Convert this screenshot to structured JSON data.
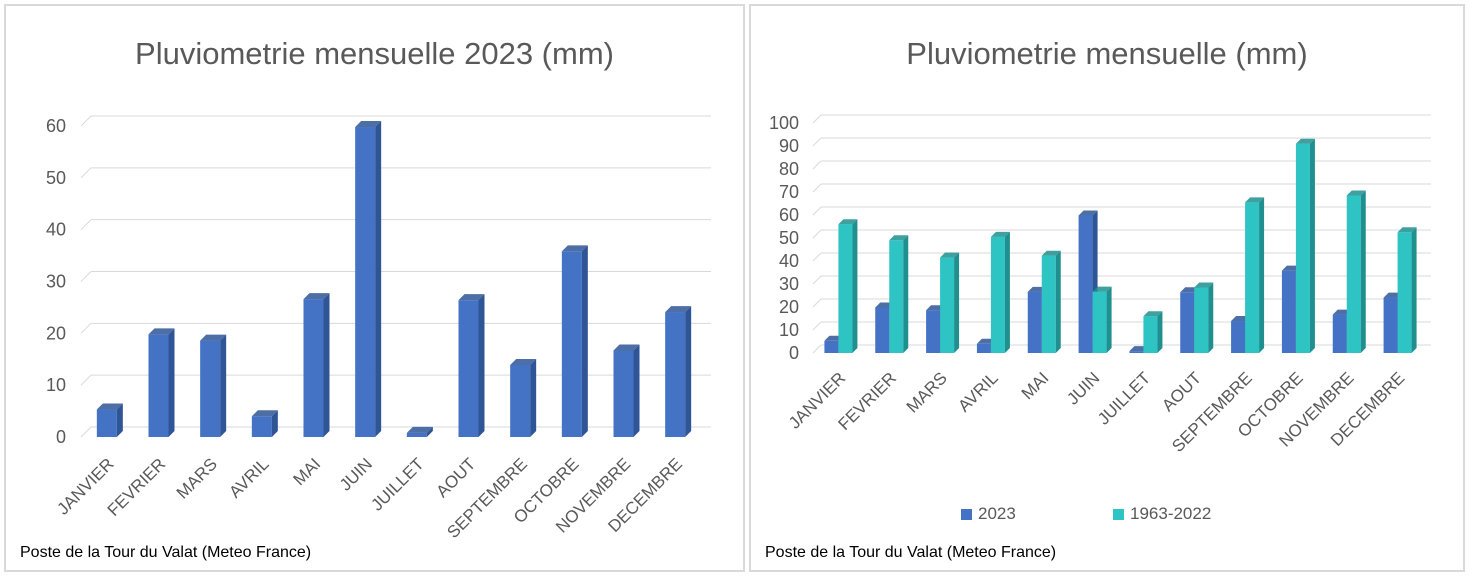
{
  "colors": {
    "series_2023": "#4472c4",
    "series_2023_side": "#2f5597",
    "series_hist": "#2ec4c4",
    "series_hist_side": "#1f8f8f",
    "grid": "#d9d9d9"
  },
  "chart_data": [
    {
      "type": "bar",
      "title": "Pluviometrie mensuelle 2023 (mm)",
      "source": "Poste de la Tour du Valat (Meteo France)",
      "categories": [
        "JANVIER",
        "FEVRIER",
        "MARS",
        "AVRIL",
        "MAI",
        "JUIN",
        "JUILLET",
        "AOUT",
        "SEPTEMBRE",
        "OCTOBRE",
        "NOVEMBRE",
        "DECEMBRE"
      ],
      "series": [
        {
          "values": [
            5.3,
            19.8,
            18.6,
            4.0,
            26.6,
            59.8,
            0.8,
            26.4,
            13.9,
            35.8,
            16.7,
            24.1
          ]
        }
      ],
      "ylim": [
        0,
        60
      ],
      "yticks": [
        "0",
        "10",
        "20",
        "30",
        "40",
        "50",
        "60"
      ],
      "grid": true,
      "style": "3d-column"
    },
    {
      "type": "bar",
      "title": "Pluviometrie mensuelle (mm)",
      "source": "Poste de la Tour du Valat (Meteo France)",
      "categories": [
        "JANVIER",
        "FEVRIER",
        "MARS",
        "AVRIL",
        "MAI",
        "JUIN",
        "JUILLET",
        "AOUT",
        "SEPTEMBRE",
        "OCTOBRE",
        "NOVEMBRE",
        "DECEMBRE"
      ],
      "series": [
        {
          "name": "2023",
          "values": [
            5.3,
            19.8,
            18.6,
            4.0,
            26.6,
            59.8,
            0.8,
            26.4,
            13.9,
            35.8,
            16.7,
            24.1
          ]
        },
        {
          "name": "1963-2022",
          "values": [
            56.0,
            49.0,
            41.5,
            50.5,
            42.3,
            26.7,
            16.0,
            28.5,
            65.5,
            91.0,
            68.5,
            52.5
          ]
        }
      ],
      "ylim": [
        0,
        100
      ],
      "yticks": [
        "0",
        "10",
        "20",
        "30",
        "40",
        "50",
        "60",
        "70",
        "80",
        "90",
        "100"
      ],
      "grid": true,
      "legend": "bottom",
      "style": "3d-column"
    }
  ]
}
